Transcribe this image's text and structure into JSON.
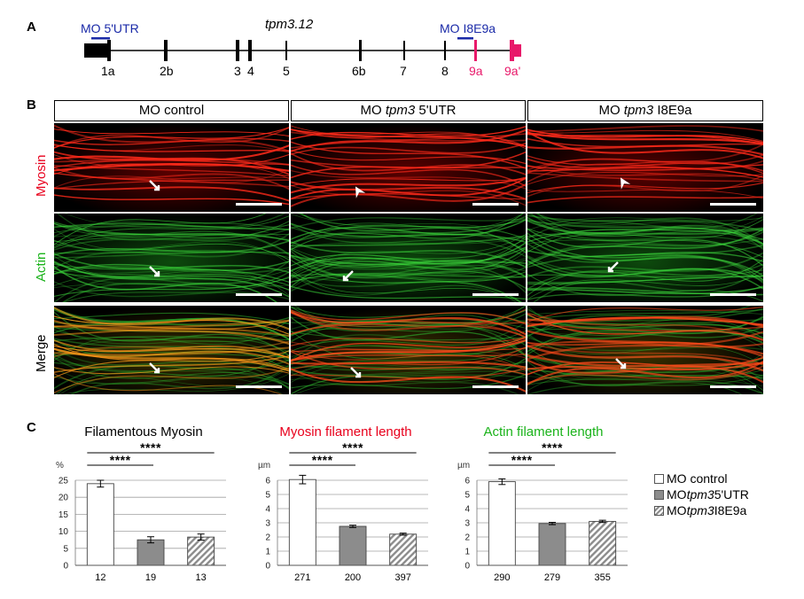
{
  "panels": {
    "a": "A",
    "b": "B",
    "c": "C"
  },
  "gene_map": {
    "gene_name": "tpm3.12",
    "mo_5utr_label": "MO 5'UTR",
    "mo_i8e9a_label": "MO I8E9a",
    "exons": [
      {
        "label": "1a",
        "color": "#000000"
      },
      {
        "label": "2b",
        "color": "#000000"
      },
      {
        "label": "3",
        "color": "#000000"
      },
      {
        "label": "4",
        "color": "#000000"
      },
      {
        "label": "5",
        "color": "#000000"
      },
      {
        "label": "6b",
        "color": "#000000"
      },
      {
        "label": "7",
        "color": "#000000"
      },
      {
        "label": "8",
        "color": "#000000"
      },
      {
        "label": "9a",
        "color": "#e8196a"
      },
      {
        "label": "9a'",
        "color": "#e8196a"
      }
    ],
    "mo_color": "#1a2aa8",
    "alt_exon_color": "#e8196a"
  },
  "micrographs": {
    "columns": [
      {
        "prefix": "MO control",
        "gene": "",
        "suffix": ""
      },
      {
        "prefix": "MO ",
        "gene": "tpm3",
        "suffix": " 5'UTR"
      },
      {
        "prefix": "MO ",
        "gene": "tpm3",
        "suffix": " I8E9a"
      }
    ],
    "rows": [
      {
        "label": "Myosin",
        "color": "#e8001c"
      },
      {
        "label": "Actin",
        "color": "#1bb31b"
      },
      {
        "label": "Merge",
        "color": "#000000"
      }
    ]
  },
  "chart_data": [
    {
      "type": "bar",
      "title": "Filamentous Myosin",
      "title_color": "#000000",
      "unit": "%",
      "ylim": [
        0,
        25
      ],
      "yticks": [
        0,
        5,
        10,
        15,
        20,
        25
      ],
      "categories": [
        "MO control",
        "MO tpm3 5'UTR",
        "MO tpm3 I8E9a"
      ],
      "values": [
        24,
        7.5,
        8.3
      ],
      "errors": [
        1.0,
        0.9,
        0.9
      ],
      "n_labels": [
        "12",
        "19",
        "13"
      ],
      "significance": [
        {
          "from": 0,
          "to": 1,
          "label": "****"
        },
        {
          "from": 0,
          "to": 2,
          "label": "****"
        }
      ],
      "grid": true
    },
    {
      "type": "bar",
      "title": "Myosin filament length",
      "title_color": "#e8001c",
      "unit": "µm",
      "ylim": [
        0,
        6
      ],
      "yticks": [
        0,
        1,
        2,
        3,
        4,
        5,
        6
      ],
      "categories": [
        "MO control",
        "MO tpm3 5'UTR",
        "MO tpm3 I8E9a"
      ],
      "values": [
        6.05,
        2.75,
        2.2
      ],
      "errors": [
        0.3,
        0.08,
        0.07
      ],
      "n_labels": [
        "271",
        "200",
        "397"
      ],
      "significance": [
        {
          "from": 0,
          "to": 1,
          "label": "****"
        },
        {
          "from": 0,
          "to": 2,
          "label": "****"
        }
      ],
      "grid": true
    },
    {
      "type": "bar",
      "title": "Actin filament length",
      "title_color": "#1bb31b",
      "unit": "µm",
      "ylim": [
        0,
        6
      ],
      "yticks": [
        0,
        1,
        2,
        3,
        4,
        5,
        6
      ],
      "categories": [
        "MO control",
        "MO tpm3 5'UTR",
        "MO tpm3 I8E9a"
      ],
      "values": [
        5.9,
        2.95,
        3.1
      ],
      "errors": [
        0.2,
        0.08,
        0.08
      ],
      "n_labels": [
        "290",
        "279",
        "355"
      ],
      "significance": [
        {
          "from": 0,
          "to": 1,
          "label": "****"
        },
        {
          "from": 0,
          "to": 2,
          "label": "****"
        }
      ],
      "grid": true
    }
  ],
  "legend": {
    "items": [
      {
        "prefix": "MO control",
        "gene": "",
        "suffix": "",
        "fill": "white"
      },
      {
        "prefix": "MO ",
        "gene": "tpm3",
        "suffix": " 5'UTR",
        "fill": "gray"
      },
      {
        "prefix": "MO ",
        "gene": "tpm3",
        "suffix": " I8E9a",
        "fill": "hatched"
      }
    ]
  }
}
